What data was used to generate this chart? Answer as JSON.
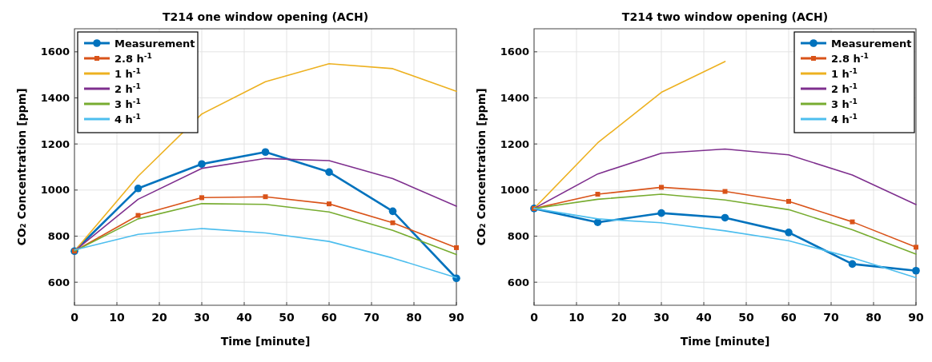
{
  "chart_data": [
    {
      "type": "line",
      "title": "T214 one window opening (ACH)",
      "xlabel": "Time [minute]",
      "ylabel": "CO₂ Concentration [ppm]",
      "x": [
        0,
        15,
        30,
        45,
        60,
        75,
        90
      ],
      "xlim": [
        0,
        90
      ],
      "xticks": [
        0,
        10,
        20,
        30,
        40,
        50,
        60,
        70,
        80,
        90
      ],
      "ylim": [
        500,
        1700
      ],
      "yticks": [
        600,
        800,
        1000,
        1200,
        1400,
        1600
      ],
      "grid": true,
      "legend": "top left",
      "series": [
        {
          "name": "Measurement",
          "color": "#0072bd",
          "marker": "circle",
          "values": [
            735,
            1007,
            1113,
            1165,
            1078,
            908,
            617
          ]
        },
        {
          "name": "2.8 h$^{-1}$",
          "color": "#d95319",
          "marker": "square",
          "values": [
            735,
            890,
            967,
            971,
            940,
            858,
            750
          ]
        },
        {
          "name": "1 h$^{-1}$",
          "color": "#edb120",
          "marker": "none",
          "values": [
            735,
            1060,
            1330,
            1470,
            1548,
            1527,
            1429
          ]
        },
        {
          "name": "2 h$^{-1}$",
          "color": "#7e2f8e",
          "marker": "none",
          "values": [
            735,
            960,
            1094,
            1137,
            1128,
            1050,
            930
          ]
        },
        {
          "name": "3 h$^{-1}$",
          "color": "#77ac30",
          "marker": "none",
          "values": [
            735,
            875,
            941,
            938,
            905,
            825,
            720
          ]
        },
        {
          "name": "4 h$^{-1}$",
          "color": "#4dbeee",
          "marker": "none",
          "values": [
            740,
            808,
            833,
            814,
            777,
            705,
            620
          ]
        }
      ]
    },
    {
      "type": "line",
      "title": "T214 two window opening (ACH)",
      "xlabel": "Time [minute]",
      "ylabel": "CO₂ Concentration [ppm]",
      "x": [
        0,
        15,
        30,
        45,
        60,
        75,
        90
      ],
      "xlim": [
        0,
        90
      ],
      "xticks": [
        0,
        10,
        20,
        30,
        40,
        50,
        60,
        70,
        80,
        90
      ],
      "ylim": [
        500,
        1700
      ],
      "yticks": [
        600,
        800,
        1000,
        1200,
        1400,
        1600
      ],
      "grid": true,
      "legend": "top right",
      "series": [
        {
          "name": "Measurement",
          "color": "#0072bd",
          "marker": "circle",
          "values": [
            920,
            860,
            900,
            880,
            816,
            679,
            650
          ]
        },
        {
          "name": "2.8 h$^{-1}$",
          "color": "#d95319",
          "marker": "square",
          "values": [
            920,
            982,
            1012,
            994,
            951,
            862,
            752
          ]
        },
        {
          "name": "1 h$^{-1}$",
          "color": "#edb120",
          "marker": "none",
          "values": [
            920,
            1205,
            1424,
            1558,
            null,
            null,
            null
          ]
        },
        {
          "name": "2 h$^{-1}$",
          "color": "#7e2f8e",
          "marker": "none",
          "values": [
            920,
            1070,
            1160,
            1178,
            1153,
            1065,
            937
          ]
        },
        {
          "name": "3 h$^{-1}$",
          "color": "#77ac30",
          "marker": "none",
          "values": [
            920,
            960,
            982,
            957,
            915,
            828,
            722
          ]
        },
        {
          "name": "4 h$^{-1}$",
          "color": "#4dbeee",
          "marker": "none",
          "values": [
            920,
            875,
            858,
            823,
            780,
            706,
            620
          ]
        }
      ]
    }
  ]
}
